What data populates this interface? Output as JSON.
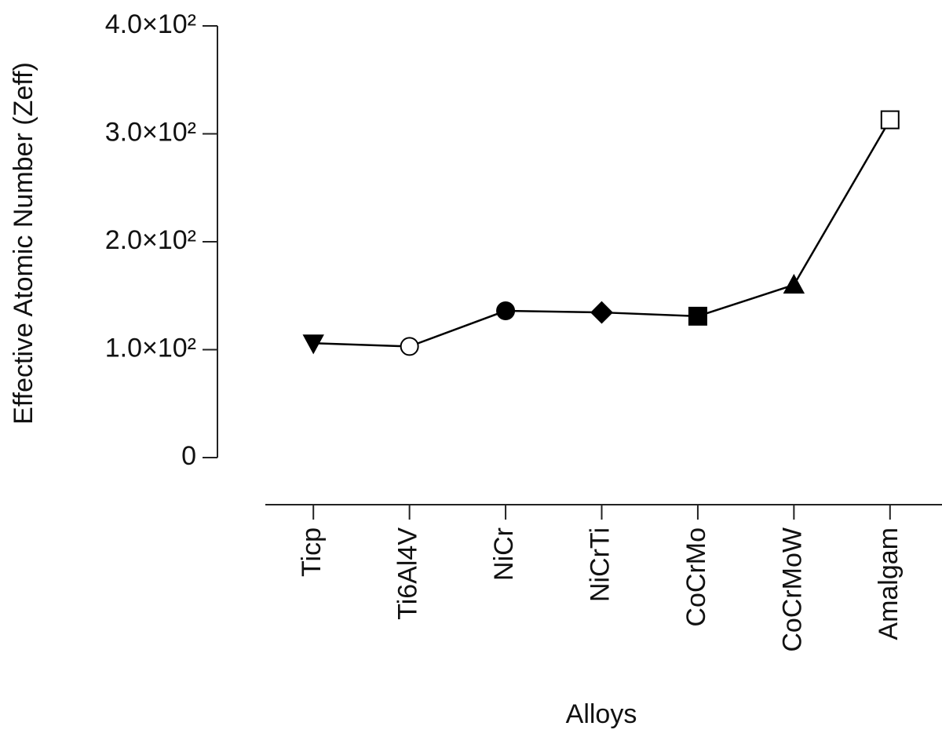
{
  "chart_data": {
    "type": "line",
    "x_label": "Alloys",
    "y_label": "Effective Atomic Number (Zeff)",
    "categories": [
      "Ticp",
      "Ti6Al4V",
      "NiCr",
      "NiCrTi",
      "CoCrMo",
      "CoCrMoW",
      "Amalgam"
    ],
    "values": [
      106,
      103,
      136,
      134.5,
      131,
      160,
      313
    ],
    "color": "#000000",
    "markers": [
      "triangle-down",
      "circle-open",
      "circle",
      "diamond",
      "square",
      "triangle",
      "square-open"
    ],
    "ylim": [
      0,
      400
    ],
    "yticks": [
      0,
      {
        "value": 100,
        "label": "1.0×10²"
      },
      {
        "value": 200,
        "label": "2.0×10²"
      },
      {
        "value": 300,
        "label": "3.0×10²"
      },
      {
        "value": 400,
        "label": "4.0×10²"
      }
    ],
    "grid": false
  }
}
